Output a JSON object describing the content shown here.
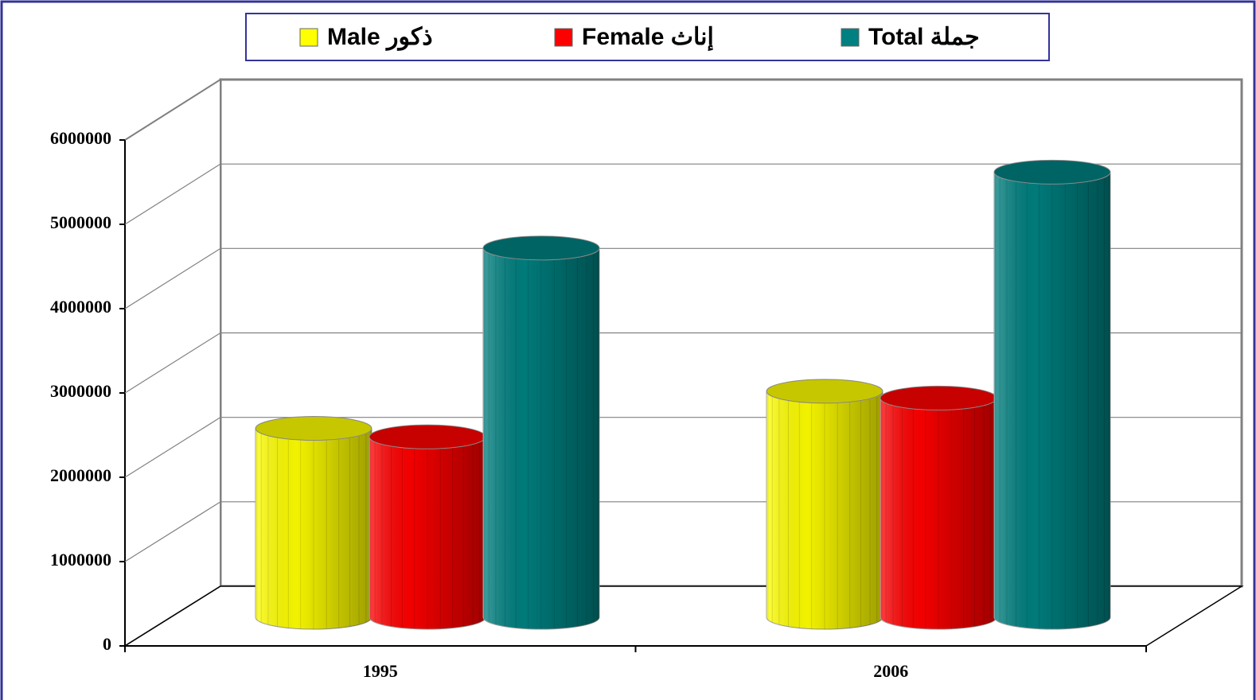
{
  "chart_data": {
    "type": "bar3d",
    "categories": [
      "1995",
      "2006"
    ],
    "series": [
      {
        "name": "Male ذكور",
        "color": "#ffff00",
        "values": [
          2240000,
          2680000
        ]
      },
      {
        "name": "Female إناث",
        "color": "#ff0000",
        "values": [
          2140000,
          2600000
        ]
      },
      {
        "name": "Total جملة",
        "color": "#008080",
        "values": [
          4380000,
          5280000
        ]
      }
    ],
    "ylim": [
      0,
      6000000
    ],
    "yticks": [
      0,
      1000000,
      2000000,
      3000000,
      4000000,
      5000000,
      6000000
    ],
    "grid": true,
    "legend": "top"
  }
}
